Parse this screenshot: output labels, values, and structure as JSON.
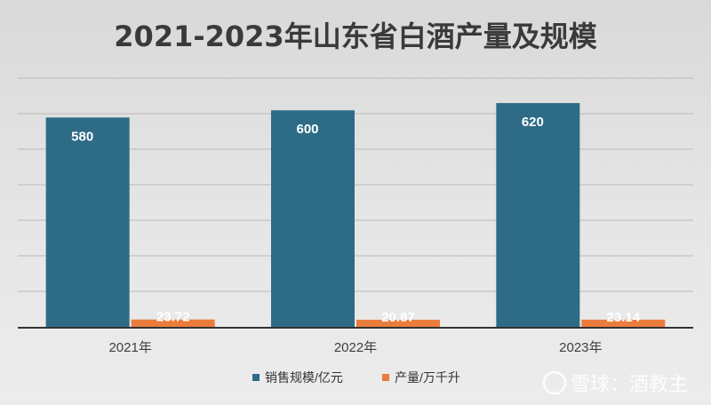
{
  "chart_data": {
    "type": "bar",
    "title": "2021-2023年山东省白酒产量及规模",
    "categories": [
      "2021年",
      "2022年",
      "2023年"
    ],
    "series": [
      {
        "name": "销售规模/亿元",
        "values": [
          580,
          600,
          620
        ],
        "labels": [
          "580",
          "600",
          "620"
        ],
        "color": "#2e6b87",
        "label_color": "#ffffff"
      },
      {
        "name": "产量/万千升",
        "values": [
          23.72,
          20.87,
          23.14
        ],
        "labels": [
          "23.72",
          "20.87",
          "23.14"
        ],
        "color": "#ea7d3d",
        "label_color": "#ffffff"
      }
    ],
    "grid": true,
    "legend": "bottom"
  },
  "watermark": {
    "text": "雪球：酒教主"
  }
}
